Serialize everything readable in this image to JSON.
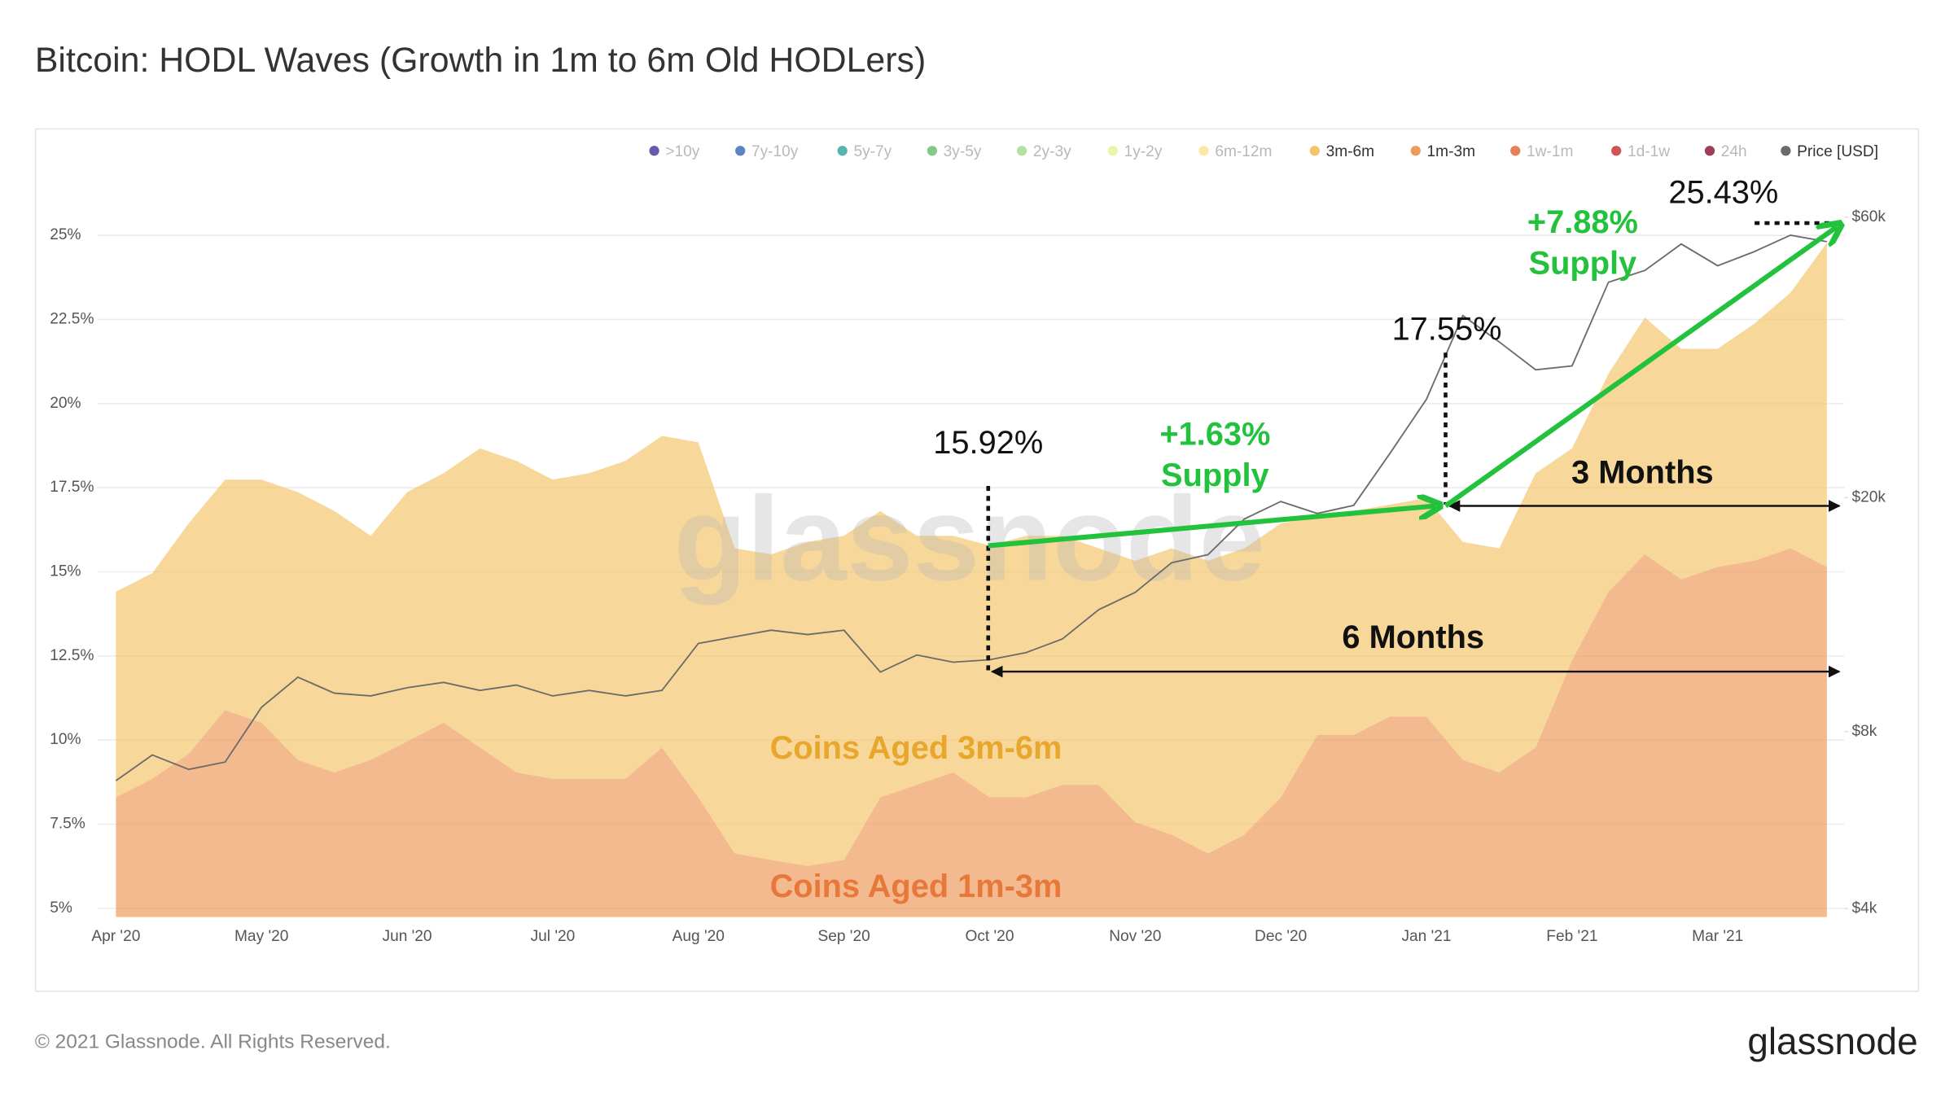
{
  "title": "Bitcoin: HODL Waves (Growth in 1m to 6m Old HODLers)",
  "footer": {
    "copyright": "© 2021 Glassnode. All Rights Reserved.",
    "logo": "glassnode"
  },
  "chart_data": {
    "type": "stacked-area",
    "watermark": "glassnode",
    "categories": [
      "Apr '20",
      null,
      null,
      null,
      "May '20",
      null,
      null,
      null,
      "Jun '20",
      null,
      null,
      null,
      "Jul '20",
      null,
      null,
      null,
      "Aug '20",
      null,
      null,
      null,
      "Sep '20",
      null,
      null,
      null,
      "Oct '20",
      null,
      null,
      null,
      "Nov '20",
      null,
      null,
      null,
      "Dec '20",
      null,
      null,
      null,
      "Jan '21",
      null,
      null,
      null,
      "Feb '21",
      null,
      null,
      null,
      "Mar '21",
      null,
      null,
      null
    ],
    "series": [
      {
        "name": "1m-3m",
        "color": "#ee9a5c",
        "values": [
          8.3,
          8.85,
          9.59,
          10.89,
          10.52,
          9.41,
          9.04,
          9.41,
          9.96,
          10.52,
          9.78,
          9.04,
          8.85,
          8.85,
          8.85,
          9.78,
          8.3,
          6.63,
          6.44,
          6.26,
          6.44,
          8.3,
          8.67,
          9.04,
          8.3,
          8.3,
          8.67,
          8.67,
          7.56,
          7.19,
          6.63,
          7.19,
          8.3,
          10.15,
          10.15,
          10.7,
          10.7,
          9.41,
          9.04,
          9.78,
          12.37,
          14.41,
          15.52,
          14.78,
          15.15,
          15.33,
          15.7,
          15.15
        ]
      },
      {
        "name": "3m-6m",
        "color": "#f5c46a",
        "values": [
          6.11,
          6.11,
          6.85,
          6.85,
          7.22,
          7.96,
          7.77,
          6.66,
          7.41,
          7.41,
          8.89,
          9.26,
          8.89,
          9.08,
          9.45,
          9.26,
          10.55,
          9.07,
          9.08,
          9.63,
          9.63,
          8.51,
          7.4,
          7.03,
          7.48,
          7.77,
          7.4,
          7.03,
          7.77,
          8.51,
          8.7,
          8.51,
          8.14,
          6.48,
          6.66,
          6.3,
          6.49,
          6.48,
          6.66,
          8.15,
          6.3,
          6.48,
          7.04,
          6.85,
          6.48,
          7.04,
          7.6,
          9.63
        ]
      },
      {
        "name": "Price [USD]",
        "color": "#6b6b6b",
        "axis": "y2",
        "values": [
          6600,
          7300,
          6900,
          7100,
          8800,
          9900,
          9300,
          9200,
          9500,
          9700,
          9400,
          9600,
          9200,
          9400,
          9200,
          9400,
          11300,
          11600,
          11900,
          11700,
          11900,
          10100,
          10800,
          10500,
          10600,
          10900,
          11500,
          12900,
          13800,
          15500,
          16000,
          18400,
          19700,
          18800,
          19400,
          23800,
          29400,
          40800,
          36800,
          33000,
          33500,
          46500,
          48700,
          54000,
          49600,
          52400,
          55900,
          54500
        ]
      }
    ],
    "legend_inactive": [
      {
        "name": ">10y",
        "color": "#4b3f9e"
      },
      {
        "name": "7y-10y",
        "color": "#3e6fb8"
      },
      {
        "name": "5y-7y",
        "color": "#3aa89f"
      },
      {
        "name": "3y-5y",
        "color": "#6fbf73"
      },
      {
        "name": "2y-3y",
        "color": "#a6dc8f"
      },
      {
        "name": "1y-2y",
        "color": "#e8f29a"
      },
      {
        "name": "6m-12m",
        "color": "#fbe49a"
      },
      {
        "name": "1w-1m",
        "color": "#e06a3a"
      },
      {
        "name": "1d-1w",
        "color": "#c83540"
      },
      {
        "name": "24h",
        "color": "#8a1c3a"
      }
    ],
    "ylim": [
      4.74,
      28.07
    ],
    "yticks": [
      {
        "value": 5,
        "label": "5%"
      },
      {
        "value": 7.5,
        "label": "7.5%"
      },
      {
        "value": 10,
        "label": "10%"
      },
      {
        "value": 12.5,
        "label": "12.5%"
      },
      {
        "value": 15,
        "label": "15%"
      },
      {
        "value": 17.5,
        "label": "17.5%"
      },
      {
        "value": 20,
        "label": "20%"
      },
      {
        "value": 22.5,
        "label": "22.5%"
      },
      {
        "value": 25,
        "label": "25%"
      }
    ],
    "y2lim": [
      3870,
      83700
    ],
    "y2scale": "log",
    "y2ticks": [
      {
        "value": 4000,
        "label": "$4k"
      },
      {
        "value": 8000,
        "label": "$8k"
      },
      {
        "value": 20000,
        "label": "$20k"
      },
      {
        "value": 60000,
        "label": "$60k"
      }
    ],
    "grid": true,
    "annotations": [
      {
        "text": "25.43%",
        "color": "#111111"
      },
      {
        "text": "+7.88%",
        "color": "#22c23c"
      },
      {
        "text": "Supply",
        "color": "#22c23c"
      },
      {
        "text": "17.55%",
        "color": "#111111"
      },
      {
        "text": "15.92%",
        "color": "#111111"
      },
      {
        "text": "+1.63%",
        "color": "#22c23c"
      },
      {
        "text": "Supply",
        "color": "#22c23c"
      },
      {
        "text": "3 Months",
        "color": "#111111"
      },
      {
        "text": "6 Months",
        "color": "#111111"
      },
      {
        "text": "Coins Aged 3m-6m",
        "color": "#e8a62c"
      },
      {
        "text": "Coins Aged 1m-3m",
        "color": "#e8783a"
      }
    ]
  }
}
